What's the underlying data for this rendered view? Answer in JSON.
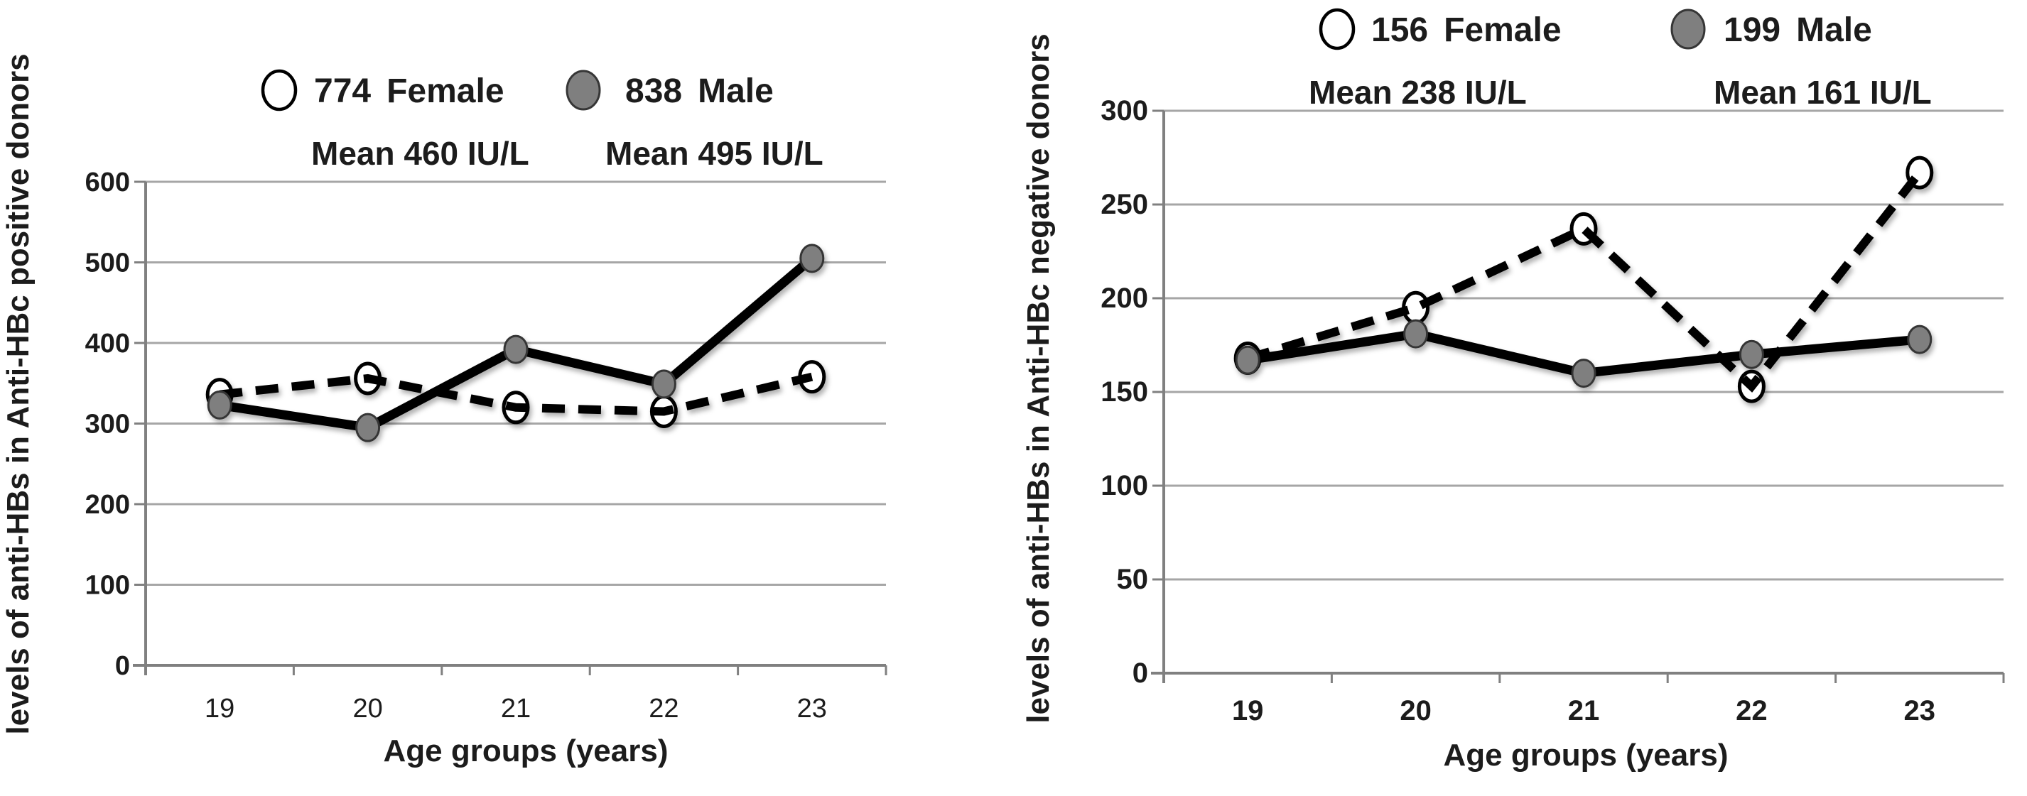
{
  "figure": {
    "background": "#ffffff",
    "text_color": "#1c1c1c",
    "grid_color": "#a6a6a6",
    "axis_color": "#808080",
    "series_line_color": "#000000",
    "male_marker_fill": "#7f7f7f",
    "male_marker_stroke": "#363636",
    "female_marker_fill": "#ffffff",
    "female_marker_stroke": "#000000"
  },
  "chart_data": [
    {
      "type": "line",
      "position": "left",
      "ylabel": "levels of anti-HBs in Anti-HBc positive donors",
      "xlabel": "Age groups (years)",
      "categories": [
        "19",
        "20",
        "21",
        "22",
        "23"
      ],
      "ylim": [
        0,
        600
      ],
      "ystep": 100,
      "yticks": [
        0,
        100,
        200,
        300,
        400,
        500,
        600
      ],
      "grid": true,
      "legend_position": "top",
      "legend": [
        {
          "marker": "open-circle",
          "count": "774",
          "label": "Female",
          "mean": "Mean 460 IU/L"
        },
        {
          "marker": "filled-circle",
          "count": "838",
          "label": "Male",
          "mean": "Mean 495 IU/L"
        }
      ],
      "series": [
        {
          "name": "Female",
          "line_style": "dashed",
          "marker": "open-circle",
          "values": [
            336,
            356,
            320,
            315,
            358
          ]
        },
        {
          "name": "Male",
          "line_style": "solid",
          "marker": "filled-circle",
          "values": [
            323,
            295,
            392,
            349,
            505
          ]
        }
      ]
    },
    {
      "type": "line",
      "position": "right",
      "ylabel": "levels of anti-HBs in Anti-HBc negative donors",
      "xlabel": "Age groups (years)",
      "categories": [
        "19",
        "20",
        "21",
        "22",
        "23"
      ],
      "ylim": [
        0,
        300
      ],
      "ystep": 50,
      "yticks": [
        0,
        50,
        100,
        150,
        200,
        250,
        300
      ],
      "grid": true,
      "legend_position": "top",
      "legend": [
        {
          "marker": "open-circle",
          "count": "156",
          "label": "Female",
          "mean": "Mean 238 IU/L"
        },
        {
          "marker": "filled-circle",
          "count": "199",
          "label": "Male",
          "mean": "Mean 161 IU/L"
        }
      ],
      "series": [
        {
          "name": "Female",
          "line_style": "dashed",
          "marker": "open-circle",
          "values": [
            168,
            195,
            237,
            153,
            267
          ]
        },
        {
          "name": "Male",
          "line_style": "solid",
          "marker": "filled-circle",
          "values": [
            167,
            181,
            160,
            170,
            178
          ]
        }
      ]
    }
  ]
}
